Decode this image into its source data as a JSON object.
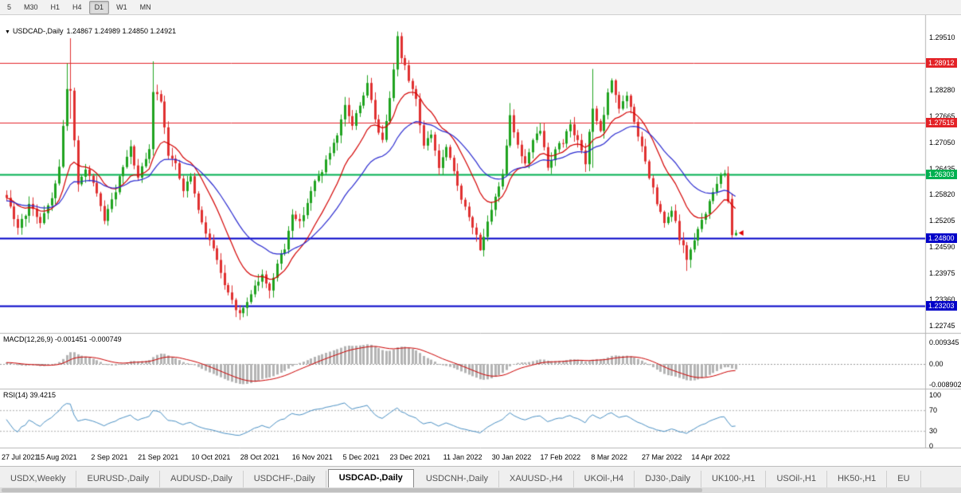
{
  "toolbar": {
    "periods": [
      {
        "label": "5",
        "active": false
      },
      {
        "label": "M30",
        "active": false
      },
      {
        "label": "H1",
        "active": false
      },
      {
        "label": "H4",
        "active": false
      },
      {
        "label": "D1",
        "active": true
      },
      {
        "label": "W1",
        "active": false
      },
      {
        "label": "MN",
        "active": false
      }
    ]
  },
  "chart": {
    "title_marker": "▼",
    "symbol_title": "USDCAD-,Daily",
    "ohlc_text": "1.24867 1.24989 1.24850 1.24921",
    "price_axis": {
      "top_value": 1.2951,
      "step": 0.00615,
      "labels": [
        "1.29510",
        "1.28280",
        "1.27665",
        "1.27050",
        "1.26435",
        "1.25820",
        "1.25205",
        "1.24590",
        "1.23975",
        "1.23360",
        "1.22745"
      ]
    }
  },
  "macd": {
    "label": "MACD(12,26,9) -0.001451 -0.000749",
    "axis": [
      "0.009345",
      "0.00",
      "-0.008902"
    ]
  },
  "rsi": {
    "label": "RSI(14) 39.4215",
    "axis": [
      "100",
      "70",
      "30",
      "0"
    ],
    "guide_levels": [
      70,
      30
    ]
  },
  "x_axis": {
    "labels": [
      "27 Jul 2021",
      "15 Aug 2021",
      "2 Sep 2021",
      "21 Sep 2021",
      "10 Oct 2021",
      "28 Oct 2021",
      "16 Nov 2021",
      "5 Dec 2021",
      "23 Dec 2021",
      "11 Jan 2022",
      "30 Jan 2022",
      "17 Feb 2022",
      "8 Mar 2022",
      "27 Mar 2022",
      "14 Apr 2022"
    ],
    "bar_indices": [
      0,
      13,
      27,
      40,
      54,
      67,
      81,
      94,
      107,
      121,
      134,
      147,
      160,
      174,
      187
    ]
  },
  "tabs": [
    {
      "label": "USDX,Weekly",
      "active": false
    },
    {
      "label": "EURUSD-,Daily",
      "active": false
    },
    {
      "label": "AUDUSD-,Daily",
      "active": false
    },
    {
      "label": "USDCHF-,Daily",
      "active": false
    },
    {
      "label": "USDCAD-,Daily",
      "active": true
    },
    {
      "label": "USDCNH-,Daily",
      "active": false
    },
    {
      "label": "XAUUSD-,H4",
      "active": false
    },
    {
      "label": "UKOil-,H4",
      "active": false
    },
    {
      "label": "DJ30-,Daily",
      "active": false
    },
    {
      "label": "UK100-,H1",
      "active": false
    },
    {
      "label": "USOil-,H1",
      "active": false
    },
    {
      "label": "HK50-,H1",
      "active": false
    },
    {
      "label": "EU",
      "active": false
    }
  ],
  "colors": {
    "bull": "#1fa31f",
    "bear": "#e03030",
    "ma_fast": "#d40000",
    "ma_slow": "#2a2ad0",
    "macd_hist": "#b4b4b4",
    "macd_signal": "#cc0000",
    "rsi_line": "#4a90c4",
    "marker": "#e00000",
    "level_red": "#e32227",
    "level_green": "#00b050",
    "level_blue": "#0000c8"
  },
  "chart_data": {
    "type": "candlestick",
    "symbol": "USDCAD",
    "timeframe": "Daily",
    "title": "USDCAD-,Daily",
    "last_ohlc": {
      "open": 1.24867,
      "high": 1.24989,
      "low": 1.2485,
      "close": 1.24921
    },
    "ylim": [
      1.22577,
      1.29921
    ],
    "levels": [
      {
        "label": "1.28912",
        "price": 1.28912,
        "colorKey": "level_red",
        "width": 1
      },
      {
        "label": "1.27515",
        "price": 1.27515,
        "colorKey": "level_red",
        "width": 1
      },
      {
        "label": "1.26303",
        "price": 1.26303,
        "colorKey": "level_green",
        "width": 2
      },
      {
        "label": "1.24800",
        "price": 1.248,
        "colorKey": "level_blue",
        "width": 2
      },
      {
        "label": "1.23203",
        "price": 1.23203,
        "colorKey": "level_blue",
        "width": 2
      }
    ],
    "indicators": {
      "ma_fast_period": 14,
      "ma_slow_period": 30,
      "macd_params": [
        12,
        26,
        9
      ],
      "macd_values": [
        -0.001451,
        -0.000749
      ],
      "rsi_period": 14,
      "rsi_value": 39.4215
    },
    "close_path": [
      [
        -40,
        1.256
      ],
      [
        -32,
        1.251
      ],
      [
        -25,
        1.2535
      ],
      [
        -18,
        1.26
      ],
      [
        -10,
        1.2545
      ],
      [
        -4,
        1.259
      ],
      [
        0,
        1.257
      ],
      [
        3,
        1.2505
      ],
      [
        6,
        1.2555
      ],
      [
        9,
        1.252
      ],
      [
        12,
        1.2575
      ],
      [
        14,
        1.265
      ],
      [
        16,
        1.2835
      ],
      [
        17,
        1.282
      ],
      [
        19,
        1.26
      ],
      [
        21,
        1.2645
      ],
      [
        23,
        1.2605
      ],
      [
        26,
        1.2525
      ],
      [
        28,
        1.2565
      ],
      [
        31,
        1.2645
      ],
      [
        33,
        1.269
      ],
      [
        35,
        1.262
      ],
      [
        38,
        1.2685
      ],
      [
        39,
        1.2825
      ],
      [
        41,
        1.2805
      ],
      [
        43,
        1.268
      ],
      [
        45,
        1.265
      ],
      [
        47,
        1.259
      ],
      [
        49,
        1.2625
      ],
      [
        51,
        1.254
      ],
      [
        54,
        1.2475
      ],
      [
        56,
        1.243
      ],
      [
        58,
        1.2365
      ],
      [
        60,
        1.233
      ],
      [
        62,
        1.23
      ],
      [
        64,
        1.233
      ],
      [
        66,
        1.2372
      ],
      [
        68,
        1.239
      ],
      [
        70,
        1.236
      ],
      [
        72,
        1.242
      ],
      [
        74,
        1.2455
      ],
      [
        76,
        1.254
      ],
      [
        78,
        1.2515
      ],
      [
        80,
        1.2565
      ],
      [
        82,
        1.261
      ],
      [
        84,
        1.264
      ],
      [
        86,
        1.268
      ],
      [
        88,
        1.2715
      ],
      [
        90,
        1.279
      ],
      [
        92,
        1.2745
      ],
      [
        94,
        1.2795
      ],
      [
        96,
        1.284
      ],
      [
        98,
        1.276
      ],
      [
        100,
        1.2705
      ],
      [
        102,
        1.2815
      ],
      [
        104,
        1.295
      ],
      [
        105,
        1.2905
      ],
      [
        107,
        1.2855
      ],
      [
        109,
        1.2805
      ],
      [
        111,
        1.2695
      ],
      [
        113,
        1.2725
      ],
      [
        115,
        1.2645
      ],
      [
        117,
        1.269
      ],
      [
        119,
        1.2635
      ],
      [
        121,
        1.2575
      ],
      [
        123,
        1.2525
      ],
      [
        125,
        1.2485
      ],
      [
        126,
        1.2458
      ],
      [
        128,
        1.2512
      ],
      [
        130,
        1.2572
      ],
      [
        132,
        1.2635
      ],
      [
        134,
        1.277
      ],
      [
        136,
        1.2695
      ],
      [
        138,
        1.2655
      ],
      [
        140,
        1.2705
      ],
      [
        142,
        1.2735
      ],
      [
        144,
        1.2645
      ],
      [
        146,
        1.2692
      ],
      [
        148,
        1.2705
      ],
      [
        150,
        1.2752
      ],
      [
        152,
        1.2705
      ],
      [
        154,
        1.2655
      ],
      [
        156,
        1.279
      ],
      [
        158,
        1.2725
      ],
      [
        160,
        1.2815
      ],
      [
        161,
        1.2852
      ],
      [
        163,
        1.2785
      ],
      [
        165,
        1.2812
      ],
      [
        167,
        1.2752
      ],
      [
        169,
        1.2692
      ],
      [
        171,
        1.2622
      ],
      [
        173,
        1.2562
      ],
      [
        175,
        1.2512
      ],
      [
        177,
        1.2545
      ],
      [
        179,
        1.2482
      ],
      [
        181,
        1.2432
      ],
      [
        183,
        1.2472
      ],
      [
        185,
        1.2522
      ],
      [
        187,
        1.2562
      ],
      [
        189,
        1.2612
      ],
      [
        191,
        1.2632
      ],
      [
        192,
        1.2572
      ],
      [
        193,
        1.2487
      ],
      [
        194,
        1.24921
      ]
    ],
    "key_candles": [
      {
        "i": 16,
        "high": 1.289
      },
      {
        "i": 17,
        "high": 1.2949,
        "low": 1.276
      },
      {
        "i": 39,
        "high": 1.2895
      },
      {
        "i": 62,
        "low": 1.2288
      },
      {
        "i": 104,
        "high": 1.2965
      },
      {
        "i": 126,
        "low": 1.245
      },
      {
        "i": 134,
        "high": 1.2797
      },
      {
        "i": 156,
        "high": 1.2877,
        "low": 1.2645
      },
      {
        "i": 181,
        "low": 1.2403
      },
      {
        "i": 193,
        "open": 1.2572,
        "high": 1.2585,
        "low": 1.248,
        "close": 1.2487
      },
      {
        "i": 194,
        "open": 1.24867,
        "high": 1.24989,
        "low": 1.2485,
        "close": 1.24921
      }
    ]
  }
}
